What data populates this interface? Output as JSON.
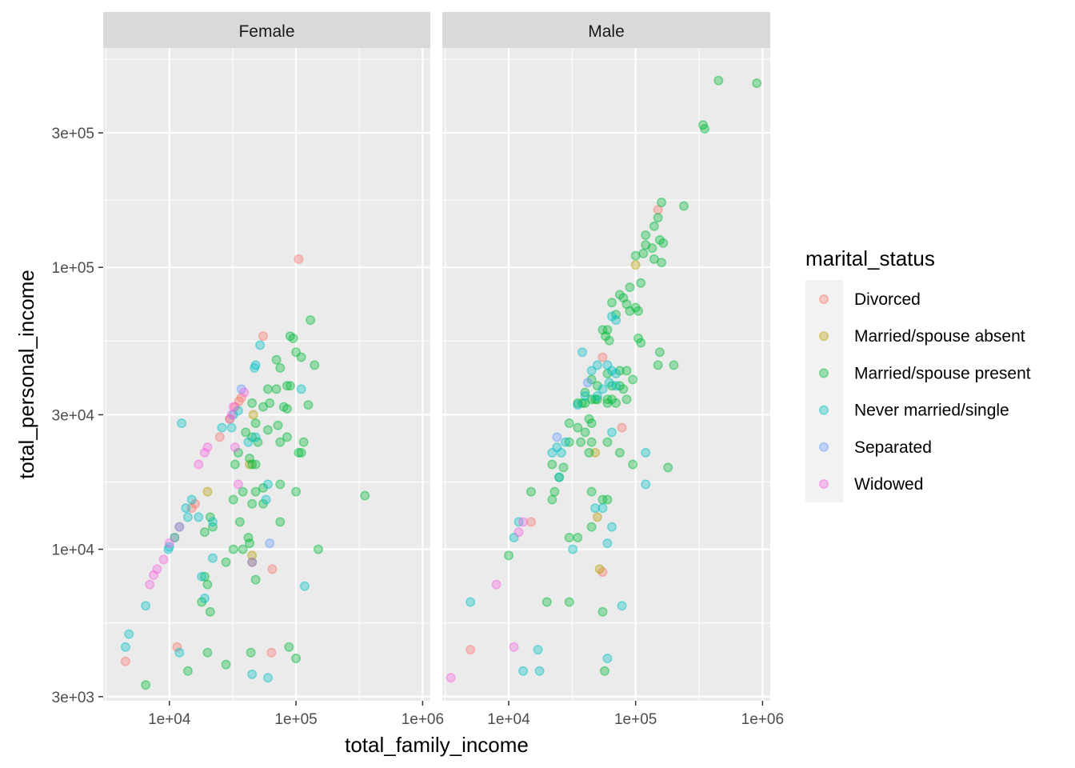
{
  "chart_data": {
    "type": "scatter",
    "facet_variable": "sex",
    "facets": [
      "Female",
      "Male"
    ],
    "xlabel": "total_family_income",
    "ylabel": "total_personal_income",
    "x_scale": "log10",
    "y_scale": "log10",
    "xlim": [
      3000,
      1150000
    ],
    "ylim": [
      2900,
      600000
    ],
    "x_ticks": [
      10000,
      100000,
      1000000
    ],
    "x_tick_labels": [
      "1e+04",
      "1e+05",
      "1e+06"
    ],
    "y_ticks": [
      3000,
      10000,
      30000,
      100000,
      300000
    ],
    "y_tick_labels": [
      "3e+03",
      "1e+04",
      "3e+04",
      "1e+05",
      "3e+05"
    ],
    "grid": true,
    "legend": {
      "title": "marital_status",
      "placement": "right",
      "entries": [
        {
          "label": "Divorced",
          "color": "#F8766D"
        },
        {
          "label": "Married/spouse absent",
          "color": "#B79F00"
        },
        {
          "label": "Married/spouse present",
          "color": "#00BA38"
        },
        {
          "label": "Never married/single",
          "color": "#00BFC4"
        },
        {
          "label": "Separated",
          "color": "#619CFF"
        },
        {
          "label": "Widowed",
          "color": "#F564E3"
        }
      ]
    },
    "series": [
      {
        "name": "Divorced",
        "female": [
          [
            105000,
            107000
          ],
          [
            55000,
            57000
          ],
          [
            37000,
            34500
          ],
          [
            35500,
            33500
          ],
          [
            33000,
            32000
          ],
          [
            25000,
            25000
          ],
          [
            16000,
            14500
          ],
          [
            15000,
            14000
          ],
          [
            12000,
            12000
          ],
          [
            11000,
            11000
          ],
          [
            65000,
            8500
          ],
          [
            11500,
            4500
          ],
          [
            64000,
            4300
          ],
          [
            4500,
            4000
          ]
        ],
        "male": [
          [
            150000,
            160000
          ],
          [
            55000,
            48000
          ],
          [
            78000,
            27000
          ],
          [
            15000,
            12500
          ],
          [
            55000,
            8300
          ],
          [
            5000,
            4400
          ]
        ]
      },
      {
        "name": "Married/spouse absent",
        "female": [
          [
            30000,
            29000
          ],
          [
            46000,
            30000
          ],
          [
            20000,
            16000
          ],
          [
            43000,
            20000
          ],
          [
            45000,
            9500
          ]
        ],
        "male": [
          [
            100000,
            102000
          ],
          [
            50000,
            13000
          ],
          [
            48000,
            22000
          ],
          [
            52000,
            8500
          ]
        ]
      },
      {
        "name": "Married/spouse present",
        "female": [
          [
            130000,
            65000
          ],
          [
            90000,
            57000
          ],
          [
            95000,
            56000
          ],
          [
            70000,
            47000
          ],
          [
            100000,
            50000
          ],
          [
            110000,
            48000
          ],
          [
            140000,
            45000
          ],
          [
            75000,
            44000
          ],
          [
            85000,
            38000
          ],
          [
            90000,
            38000
          ],
          [
            70000,
            37000
          ],
          [
            60000,
            37000
          ],
          [
            45000,
            33000
          ],
          [
            55000,
            32000
          ],
          [
            62000,
            33000
          ],
          [
            80000,
            32000
          ],
          [
            85000,
            31500
          ],
          [
            125000,
            32500
          ],
          [
            48000,
            28000
          ],
          [
            72000,
            27500
          ],
          [
            40000,
            26000
          ],
          [
            60000,
            26500
          ],
          [
            45000,
            25000
          ],
          [
            50000,
            24000
          ],
          [
            75000,
            24000
          ],
          [
            115000,
            24000
          ],
          [
            85000,
            25000
          ],
          [
            110000,
            22000
          ],
          [
            105000,
            22000
          ],
          [
            43000,
            21000
          ],
          [
            35000,
            22000
          ],
          [
            45000,
            20000
          ],
          [
            48000,
            20000
          ],
          [
            33000,
            20000
          ],
          [
            75000,
            17000
          ],
          [
            100000,
            16000
          ],
          [
            350000,
            15500
          ],
          [
            38000,
            16000
          ],
          [
            55000,
            16500
          ],
          [
            48000,
            16000
          ],
          [
            32000,
            15000
          ],
          [
            45000,
            14500
          ],
          [
            55000,
            14500
          ],
          [
            21000,
            13000
          ],
          [
            36000,
            12500
          ],
          [
            75000,
            12500
          ],
          [
            19000,
            11500
          ],
          [
            22000,
            12000
          ],
          [
            42000,
            11000
          ],
          [
            43000,
            10500
          ],
          [
            150000,
            10000
          ],
          [
            32000,
            10000
          ],
          [
            38000,
            10000
          ],
          [
            28000,
            9000
          ],
          [
            45000,
            9000
          ],
          [
            20000,
            7500
          ],
          [
            19000,
            8000
          ],
          [
            48000,
            7800
          ],
          [
            18000,
            6500
          ],
          [
            21000,
            6000
          ],
          [
            20000,
            4300
          ],
          [
            44000,
            4300
          ],
          [
            88000,
            4500
          ],
          [
            100000,
            4100
          ],
          [
            28000,
            3900
          ],
          [
            14000,
            3700
          ],
          [
            6500,
            3300
          ]
        ],
        "male": [
          [
            450000,
            460000
          ],
          [
            900000,
            450000
          ],
          [
            350000,
            310000
          ],
          [
            340000,
            320000
          ],
          [
            160000,
            170000
          ],
          [
            240000,
            165000
          ],
          [
            150000,
            150000
          ],
          [
            140000,
            140000
          ],
          [
            120000,
            130000
          ],
          [
            155000,
            125000
          ],
          [
            120000,
            120000
          ],
          [
            165000,
            122000
          ],
          [
            100000,
            110000
          ],
          [
            135000,
            117000
          ],
          [
            115000,
            112000
          ],
          [
            140000,
            107000
          ],
          [
            160000,
            104000
          ],
          [
            110000,
            88000
          ],
          [
            90000,
            85000
          ],
          [
            75000,
            80000
          ],
          [
            80000,
            78000
          ],
          [
            65000,
            75000
          ],
          [
            85000,
            74000
          ],
          [
            100000,
            72000
          ],
          [
            70000,
            68000
          ],
          [
            105000,
            70000
          ],
          [
            90000,
            70000
          ],
          [
            60000,
            60000
          ],
          [
            55000,
            60000
          ],
          [
            58000,
            57000
          ],
          [
            62000,
            55000
          ],
          [
            110000,
            54000
          ],
          [
            105000,
            56000
          ],
          [
            155000,
            50000
          ],
          [
            200000,
            45000
          ],
          [
            150000,
            45000
          ],
          [
            75000,
            43000
          ],
          [
            85000,
            43000
          ],
          [
            60000,
            42000
          ],
          [
            95000,
            40000
          ],
          [
            65000,
            38000
          ],
          [
            75000,
            38000
          ],
          [
            80000,
            37000
          ],
          [
            45000,
            40000
          ],
          [
            50000,
            38000
          ],
          [
            40000,
            36000
          ],
          [
            48000,
            34000
          ],
          [
            45000,
            34000
          ],
          [
            50000,
            34000
          ],
          [
            60000,
            33000
          ],
          [
            60000,
            34000
          ],
          [
            65000,
            34000
          ],
          [
            70000,
            33000
          ],
          [
            85000,
            34000
          ],
          [
            38000,
            33000
          ],
          [
            40000,
            33000
          ],
          [
            35000,
            33000
          ],
          [
            30000,
            28000
          ],
          [
            43000,
            29000
          ],
          [
            45000,
            28000
          ],
          [
            40000,
            26000
          ],
          [
            35000,
            27000
          ],
          [
            30000,
            24000
          ],
          [
            37000,
            24000
          ],
          [
            43000,
            22000
          ],
          [
            45000,
            24000
          ],
          [
            60000,
            24000
          ],
          [
            75000,
            22000
          ],
          [
            95000,
            20000
          ],
          [
            180000,
            19500
          ],
          [
            22000,
            20000
          ],
          [
            27000,
            19500
          ],
          [
            25000,
            18000
          ],
          [
            15000,
            16000
          ],
          [
            23000,
            16000
          ],
          [
            22000,
            15000
          ],
          [
            45000,
            16000
          ],
          [
            55000,
            15000
          ],
          [
            60000,
            15000
          ],
          [
            35000,
            11000
          ],
          [
            30000,
            11000
          ],
          [
            10000,
            9500
          ],
          [
            45000,
            12000
          ],
          [
            20000,
            6500
          ],
          [
            30000,
            6500
          ],
          [
            55000,
            6000
          ],
          [
            57000,
            3700
          ]
        ]
      },
      {
        "name": "Never married/single",
        "female": [
          [
            52000,
            53000
          ],
          [
            48000,
            45000
          ],
          [
            47000,
            44000
          ],
          [
            110000,
            37000
          ],
          [
            35000,
            31000
          ],
          [
            32000,
            30000
          ],
          [
            12500,
            28000
          ],
          [
            26000,
            27000
          ],
          [
            31000,
            27000
          ],
          [
            48000,
            25000
          ],
          [
            42000,
            24000
          ],
          [
            60000,
            17000
          ],
          [
            58000,
            15000
          ],
          [
            15000,
            15000
          ],
          [
            13500,
            14000
          ],
          [
            14000,
            13000
          ],
          [
            17000,
            13000
          ],
          [
            22000,
            12500
          ],
          [
            11000,
            11000
          ],
          [
            10000,
            10200
          ],
          [
            9800,
            10000
          ],
          [
            22000,
            9300
          ],
          [
            18000,
            8000
          ],
          [
            117000,
            7400
          ],
          [
            19000,
            6700
          ],
          [
            6500,
            6300
          ],
          [
            4800,
            5000
          ],
          [
            4500,
            4500
          ],
          [
            12000,
            4300
          ],
          [
            45000,
            3600
          ],
          [
            60000,
            3500
          ]
        ],
        "male": [
          [
            38000,
            50000
          ],
          [
            65000,
            67000
          ],
          [
            70000,
            65000
          ],
          [
            45000,
            43000
          ],
          [
            50000,
            45000
          ],
          [
            60000,
            45000
          ],
          [
            65000,
            43000
          ],
          [
            70000,
            42000
          ],
          [
            62000,
            39000
          ],
          [
            70000,
            38000
          ],
          [
            55000,
            37000
          ],
          [
            40000,
            35000
          ],
          [
            50000,
            35000
          ],
          [
            35000,
            32500
          ],
          [
            65000,
            26000
          ],
          [
            28000,
            24000
          ],
          [
            26000,
            22000
          ],
          [
            24000,
            23000
          ],
          [
            22000,
            22000
          ],
          [
            120000,
            22000
          ],
          [
            25000,
            18000
          ],
          [
            120000,
            17000
          ],
          [
            48000,
            14000
          ],
          [
            55000,
            14000
          ],
          [
            12000,
            12500
          ],
          [
            65000,
            12000
          ],
          [
            60000,
            10500
          ],
          [
            11000,
            11000
          ],
          [
            32000,
            10000
          ],
          [
            5000,
            6500
          ],
          [
            78000,
            6300
          ],
          [
            17000,
            4400
          ],
          [
            13000,
            3700
          ],
          [
            17500,
            3700
          ],
          [
            60000,
            4100
          ]
        ]
      },
      {
        "name": "Separated",
        "female": [
          [
            37000,
            37000
          ],
          [
            12000,
            12000
          ],
          [
            62000,
            10500
          ]
        ],
        "male": [
          [
            24000,
            25000
          ],
          [
            42000,
            39000
          ]
        ]
      },
      {
        "name": "Widowed",
        "female": [
          [
            39000,
            36000
          ],
          [
            31000,
            30000
          ],
          [
            32000,
            32000
          ],
          [
            20000,
            23000
          ],
          [
            19000,
            22000
          ],
          [
            17000,
            20000
          ],
          [
            33000,
            23000
          ],
          [
            35000,
            17000
          ],
          [
            10000,
            10500
          ],
          [
            9000,
            9200
          ],
          [
            8000,
            8500
          ],
          [
            7500,
            8100
          ],
          [
            7000,
            7500
          ],
          [
            30000,
            29000
          ],
          [
            45000,
            9000
          ]
        ],
        "male": [
          [
            13000,
            12500
          ],
          [
            12000,
            11500
          ],
          [
            8000,
            7500
          ],
          [
            11000,
            4500
          ],
          [
            3500,
            3500
          ]
        ]
      }
    ]
  }
}
